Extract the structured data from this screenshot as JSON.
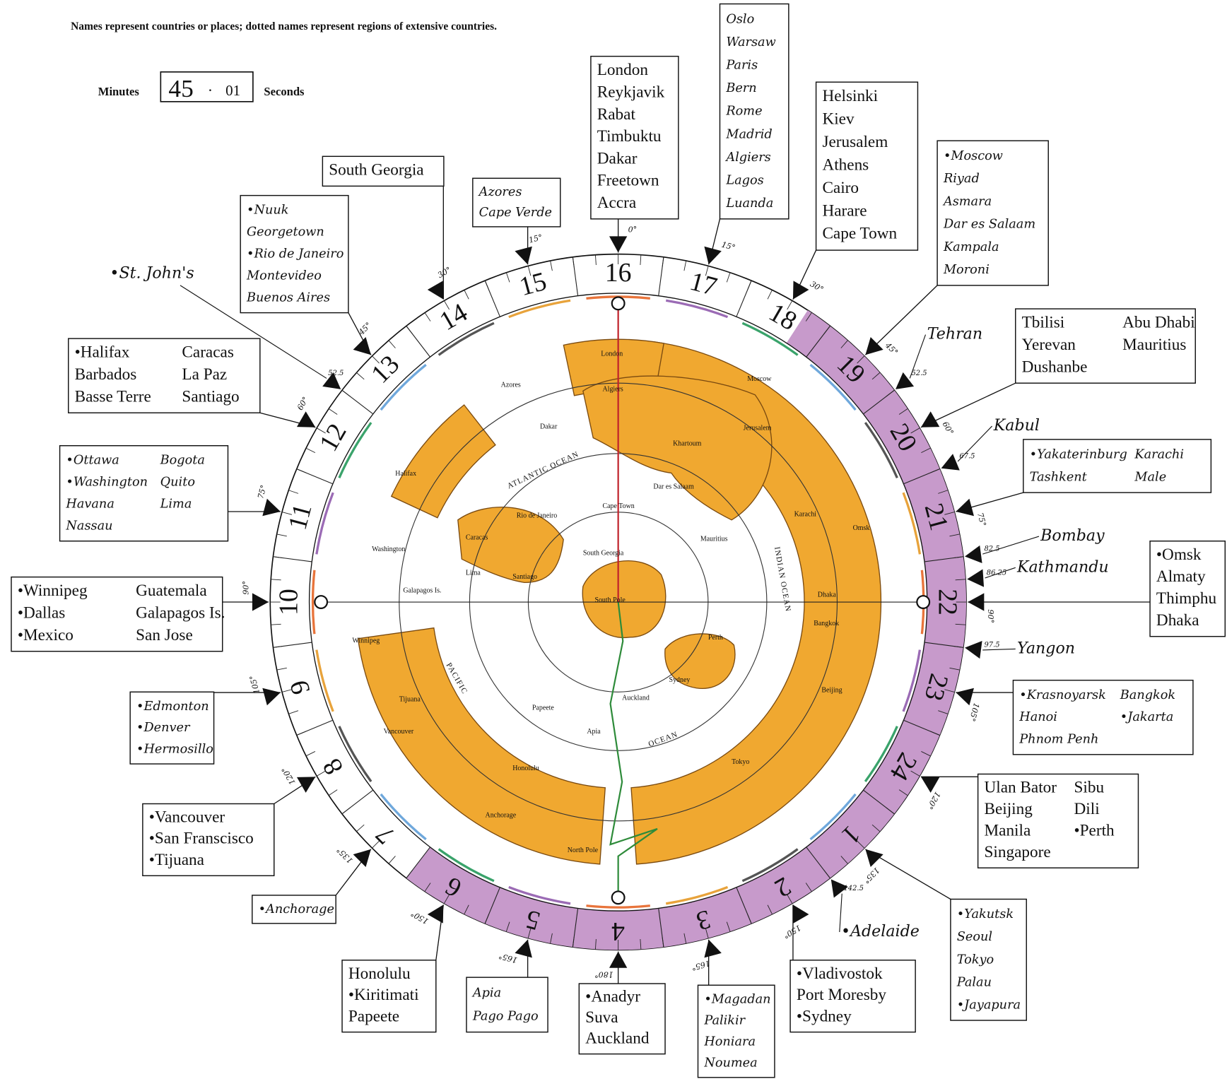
{
  "header": {
    "note": "Names represent countries or places; dotted names represent regions of extensive countries.",
    "minutes_label": "Minutes",
    "minutes": "45",
    "separator": "·",
    "seconds": "01",
    "seconds_label": "Seconds"
  },
  "dial": {
    "hours": [
      "16",
      "17",
      "18",
      "19",
      "20",
      "21",
      "22",
      "23",
      "24",
      "1",
      "2",
      "3",
      "4",
      "5",
      "6",
      "7",
      "8",
      "9",
      "10",
      "11",
      "12",
      "13",
      "14",
      "15"
    ]
  },
  "boxes": [
    {
      "marker": "30°",
      "columns": [
        [
          "South Georgia"
        ]
      ]
    },
    {
      "marker": "15°",
      "style": "script",
      "columns": [
        [
          "Azores",
          "Cape Verde"
        ]
      ]
    },
    {
      "marker": "0°",
      "columns": [
        [
          "London",
          "Reykjavik",
          "Rabat",
          "Timbuktu",
          "Dakar",
          "Freetown",
          "Accra"
        ]
      ]
    },
    {
      "marker": "15°",
      "style": "script",
      "columns": [
        [
          "Oslo",
          "Warsaw",
          "Paris",
          "Bern",
          "Rome",
          "Madrid",
          "Algiers",
          "Lagos",
          "Luanda"
        ]
      ]
    },
    {
      "marker": "30°",
      "columns": [
        [
          "Helsinki",
          "Kiev",
          "Jerusalem",
          "Athens",
          "Cairo",
          "Harare",
          "Cape Town"
        ]
      ]
    },
    {
      "marker": "45°",
      "style": "script",
      "columns": [
        [
          "•Moscow",
          "Riyad",
          "Asmara",
          "Dar es Salaam",
          "Kampala",
          "Moroni"
        ]
      ]
    },
    {
      "marker": "60°",
      "columns": [
        [
          "Tbilisi",
          "Yerevan",
          "Dushanbe"
        ],
        [
          "Abu Dhabi",
          "Mauritius"
        ]
      ]
    },
    {
      "marker": "75°",
      "style": "script",
      "columns": [
        [
          "•Yakaterinburg",
          "Tashkent"
        ],
        [
          "Karachi",
          "Male"
        ]
      ]
    },
    {
      "marker": "90°",
      "columns": [
        [
          "•Omsk",
          "Almaty",
          "Thimphu",
          "Dhaka"
        ]
      ]
    },
    {
      "marker": "105°",
      "style": "script",
      "columns": [
        [
          "•Krasnoyarsk",
          "Hanoi",
          "Phnom Penh"
        ],
        [
          "Bangkok",
          "•Jakarta"
        ]
      ]
    },
    {
      "marker": "120°",
      "columns": [
        [
          "Ulan Bator",
          "Beijing",
          "Manila",
          "Singapore"
        ],
        [
          "Sibu",
          "Dili",
          "•Perth"
        ]
      ]
    },
    {
      "marker": "135°",
      "style": "script",
      "columns": [
        [
          "•Yakutsk",
          "Seoul",
          "Tokyo",
          "Palau",
          "•Jayapura"
        ]
      ]
    },
    {
      "marker": "150°",
      "columns": [
        [
          "•Vladivostok",
          "Port Moresby",
          "•Sydney"
        ]
      ]
    },
    {
      "marker": "165°",
      "style": "script",
      "columns": [
        [
          "•Magadan",
          "Palikir",
          "Honiara",
          "Noumea"
        ]
      ]
    },
    {
      "marker": "180°",
      "columns": [
        [
          "•Anadyr",
          "Suva",
          "Auckland"
        ]
      ]
    },
    {
      "marker": "165°",
      "style": "script",
      "columns": [
        [
          "Apia",
          "Pago Pago"
        ]
      ]
    },
    {
      "marker": "150°",
      "columns": [
        [
          "Honolulu",
          "•Kiritimati",
          "Papeete"
        ]
      ]
    },
    {
      "marker": "135°",
      "style": "script",
      "columns": [
        [
          "•Anchorage"
        ]
      ]
    },
    {
      "marker": "120°",
      "columns": [
        [
          "•Vancouver",
          "•San Franscisco",
          "•Tijuana"
        ]
      ]
    },
    {
      "marker": "105°",
      "style": "script",
      "columns": [
        [
          "•Edmonton",
          "•Denver",
          "•Hermosillo"
        ]
      ]
    },
    {
      "marker": "90°",
      "columns": [
        [
          "•Winnipeg",
          "•Dallas",
          "•Mexico"
        ],
        [
          "Guatemala",
          "Galapagos Is.",
          "San Jose"
        ]
      ]
    },
    {
      "marker": "75°",
      "style": "script",
      "columns": [
        [
          "•Ottawa",
          "•Washington",
          "Havana",
          "Nassau"
        ],
        [
          "Bogota",
          "Quito",
          "Lima"
        ]
      ]
    },
    {
      "marker": "60°",
      "columns": [
        [
          "•Halifax",
          "Barbados",
          "Basse Terre"
        ],
        [
          "Caracas",
          "La Paz",
          "Santiago"
        ]
      ]
    },
    {
      "marker": "45°",
      "style": "script",
      "columns": [
        [
          "•Nuuk",
          "Georgetown",
          "•Rio de Janeiro",
          "Montevideo",
          "Buenos Aires"
        ]
      ]
    }
  ],
  "free_labels": [
    {
      "marker": "52.5",
      "text": "•St. John's"
    },
    {
      "marker": "52.5",
      "text": "Tehran"
    },
    {
      "marker": "67.5",
      "text": "Kabul"
    },
    {
      "marker": "82.5",
      "text": "Bombay"
    },
    {
      "marker": "86.25",
      "text": "Kathmandu"
    },
    {
      "marker": "97.5",
      "text": "Yangon"
    },
    {
      "marker": "142.5",
      "text": "•Adelaide"
    }
  ],
  "map": {
    "labels": [
      "London",
      "Algiers",
      "Azores",
      "Dakar",
      "Cape Town",
      "Rio de Janeiro",
      "Caracas",
      "Lima",
      "Santiago",
      "Halifax",
      "Washington",
      "Winnipeg",
      "Vancouver",
      "Anchorage",
      "Honolulu",
      "Papeete",
      "Apia",
      "Auckland",
      "Sydney",
      "Perth",
      "Tokyo",
      "Beijing",
      "Bangkok",
      "Dhaka",
      "Karachi",
      "Moscow",
      "Khartoum",
      "Dar es Salaam",
      "Mauritius",
      "Omsk",
      "South Georgia",
      "South Pole",
      "North Pole",
      "Tijuana",
      "Galapagos Is.",
      "Jerusalem",
      "ATLANTIC OCEAN",
      "INDIAN OCEAN",
      "PACIFIC",
      "OCEAN"
    ]
  }
}
